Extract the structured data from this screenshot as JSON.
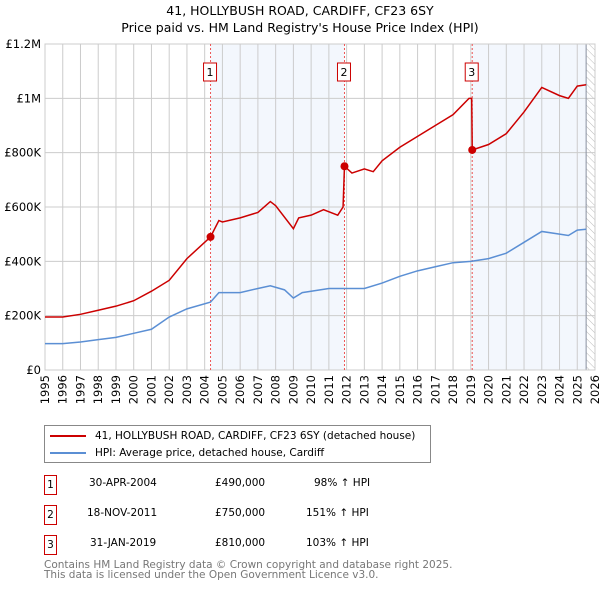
{
  "title": "41, HOLLYBUSH ROAD, CARDIFF, CF23 6SY",
  "subtitle": "Price paid vs. HM Land Registry's House Price Index (HPI)",
  "chart_data": {
    "type": "line",
    "title": "41, HOLLYBUSH ROAD, CARDIFF, CF23 6SY",
    "subtitle": "Price paid vs. HM Land Registry's House Price Index (HPI)",
    "xlim": [
      1995,
      2026
    ],
    "ylim": [
      0,
      1200000
    ],
    "x_ticks": [
      "1995",
      "1996",
      "1997",
      "1998",
      "1999",
      "2000",
      "2001",
      "2002",
      "2003",
      "2004",
      "2005",
      "2006",
      "2007",
      "2008",
      "2009",
      "2010",
      "2011",
      "2012",
      "2013",
      "2014",
      "2015",
      "2016",
      "2017",
      "2018",
      "2019",
      "2020",
      "2021",
      "2022",
      "2023",
      "2024",
      "2025",
      "2026"
    ],
    "y_ticks": [
      {
        "v": 0,
        "label": "£0"
      },
      {
        "v": 200000,
        "label": "£200K"
      },
      {
        "v": 400000,
        "label": "£400K"
      },
      {
        "v": 600000,
        "label": "£600K"
      },
      {
        "v": 800000,
        "label": "£800K"
      },
      {
        "v": 1000000,
        "label": "£1M"
      },
      {
        "v": 1200000,
        "label": "£1.2M"
      }
    ],
    "grid": true,
    "shaded_ranges": [
      [
        2004.33,
        2011.88
      ],
      [
        2019.08,
        2025.5
      ]
    ],
    "hatched_from": 2025.5,
    "series": [
      {
        "name": "41, HOLLYBUSH ROAD, CARDIFF, CF23 6SY (detached house)",
        "color": "#cc0000",
        "x": [
          1995,
          1996,
          1997,
          1998,
          1999,
          2000,
          2001,
          2002,
          2003,
          2004.33,
          2004.8,
          2005,
          2006,
          2007,
          2007.7,
          2008,
          2009,
          2009.3,
          2010,
          2010.7,
          2011.5,
          2011.8,
          2011.88,
          2012.3,
          2013,
          2013.5,
          2014,
          2015,
          2016,
          2017,
          2018,
          2018.9,
          2019.05,
          2019.08,
          2020,
          2021,
          2022,
          2023,
          2024,
          2024.5,
          2025,
          2025.5
        ],
        "y": [
          195000,
          195000,
          205000,
          220000,
          235000,
          255000,
          290000,
          330000,
          410000,
          490000,
          550000,
          545000,
          560000,
          580000,
          620000,
          605000,
          520000,
          560000,
          570000,
          590000,
          570000,
          600000,
          750000,
          725000,
          740000,
          730000,
          770000,
          820000,
          860000,
          900000,
          940000,
          1000000,
          1000000,
          810000,
          830000,
          870000,
          950000,
          1040000,
          1010000,
          1000000,
          1045000,
          1050000
        ]
      },
      {
        "name": "HPI: Average price, detached house, Cardiff",
        "color": "#5b8fd4",
        "x": [
          1995,
          1996,
          1997,
          1998,
          1999,
          2000,
          2001,
          2002,
          2003,
          2004.33,
          2004.8,
          2006,
          2007,
          2007.7,
          2008.5,
          2009,
          2009.5,
          2010.5,
          2011,
          2011.88,
          2013,
          2014,
          2015,
          2016,
          2017,
          2018,
          2019,
          2020,
          2021,
          2022,
          2023,
          2024,
          2024.5,
          2025,
          2025.5
        ],
        "y": [
          97000,
          97000,
          103000,
          112000,
          120000,
          135000,
          150000,
          195000,
          225000,
          250000,
          285000,
          285000,
          300000,
          310000,
          295000,
          265000,
          285000,
          295000,
          300000,
          300000,
          300000,
          320000,
          345000,
          365000,
          380000,
          395000,
          400000,
          410000,
          430000,
          470000,
          510000,
          500000,
          495000,
          515000,
          518000
        ]
      }
    ],
    "sales": [
      {
        "num": "1",
        "x": 2004.33,
        "y": 490000,
        "date": "30-APR-2004",
        "price": "£490,000",
        "hpi": "98% ↑ HPI"
      },
      {
        "num": "2",
        "x": 2011.88,
        "y": 750000,
        "date": "18-NOV-2011",
        "price": "£750,000",
        "hpi": "151% ↑ HPI"
      },
      {
        "num": "3",
        "x": 2019.08,
        "y": 810000,
        "date": "31-JAN-2019",
        "price": "£810,000",
        "hpi": "103% ↑ HPI"
      }
    ]
  },
  "footer": {
    "line1": "Contains HM Land Registry data © Crown copyright and database right 2025.",
    "line2": "This data is licensed under the Open Government Licence v3.0."
  }
}
